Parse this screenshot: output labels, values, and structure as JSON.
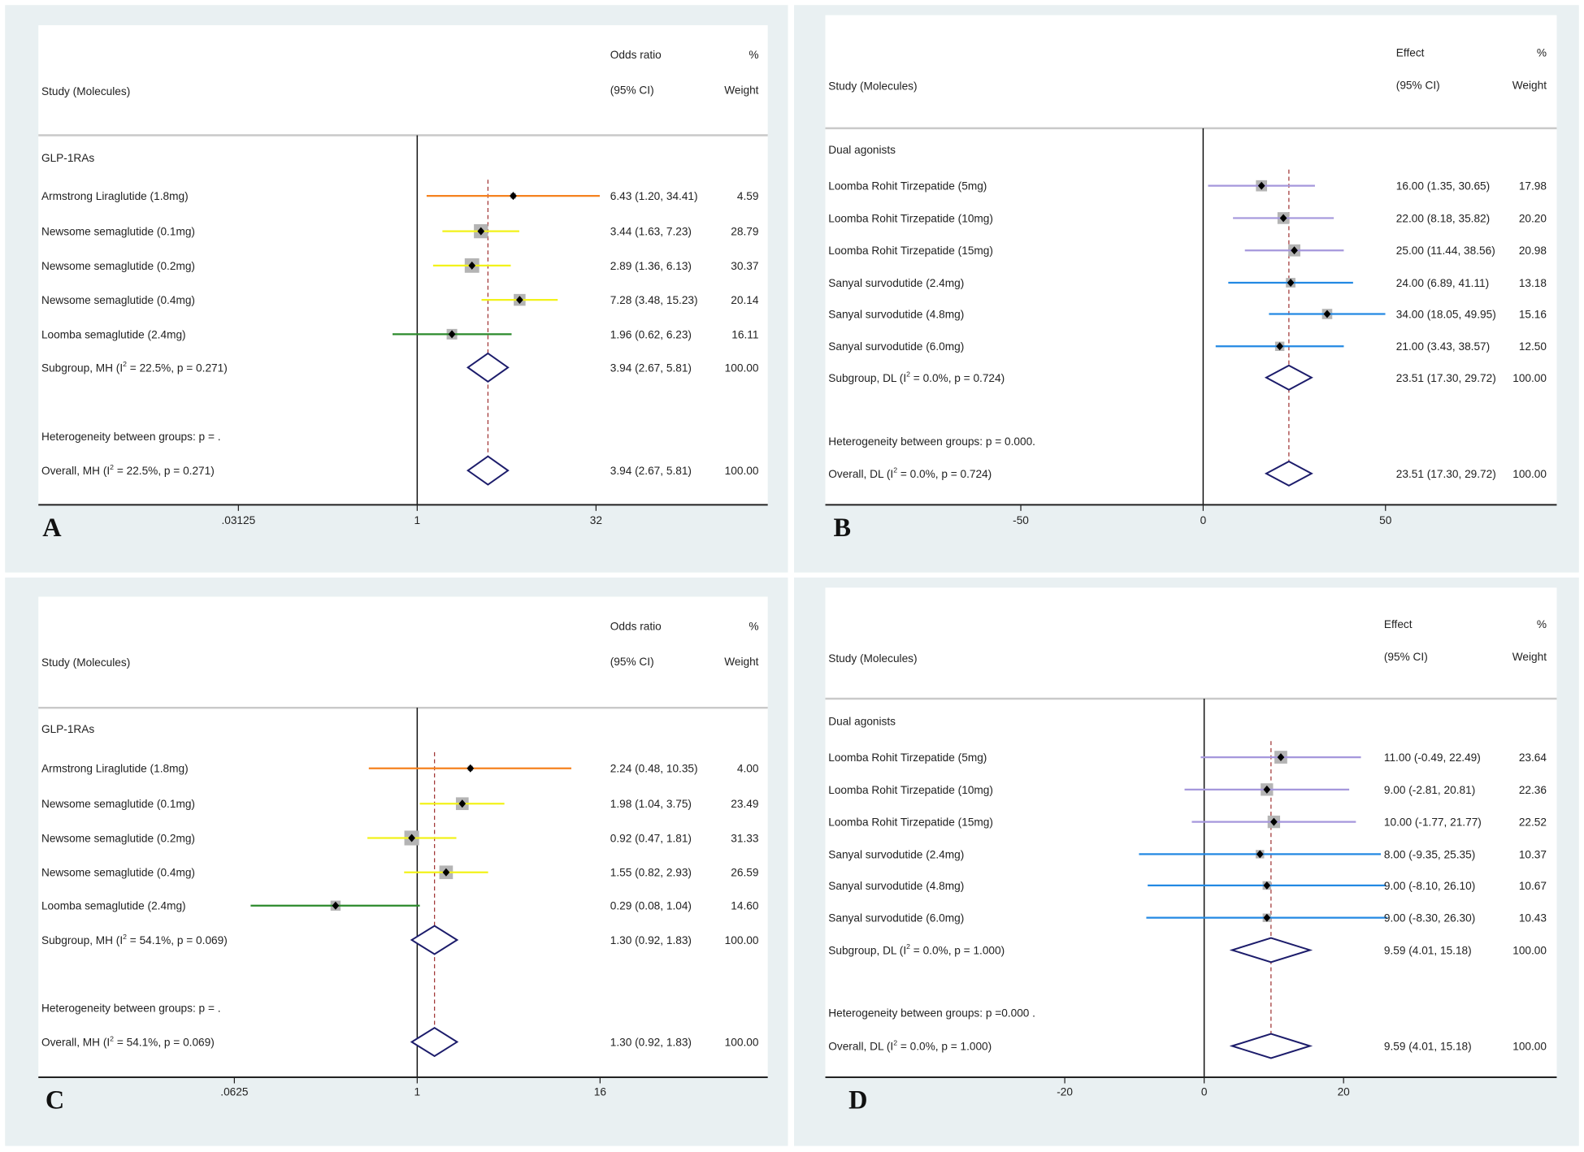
{
  "chart_data": [
    {
      "type": "forest",
      "panel_letter": "A",
      "scale": "log2",
      "header": {
        "study": "Study (Molecules)",
        "effect_line1": "Odds ratio",
        "effect_line2": "(95% CI)",
        "weight_line1": "%",
        "weight_line2": "Weight"
      },
      "group_label": "GLP-1RAs",
      "null_value": 1,
      "pooled_value": 3.94,
      "rows": [
        {
          "label": "Armstrong Liraglutide (1.8mg)",
          "est": 6.43,
          "lo": 1.2,
          "hi": 34.41,
          "ci_text": "6.43 (1.20, 34.41)",
          "weight": "4.59",
          "color": "#f5821f"
        },
        {
          "label": "Newsome semaglutide (0.1mg)",
          "est": 3.44,
          "lo": 1.63,
          "hi": 7.23,
          "ci_text": "3.44 (1.63, 7.23)",
          "weight": "28.79",
          "color": "#f2f21a"
        },
        {
          "label": "Newsome semaglutide (0.2mg)",
          "est": 2.89,
          "lo": 1.36,
          "hi": 6.13,
          "ci_text": "2.89 (1.36, 6.13)",
          "weight": "30.37",
          "color": "#f2f21a"
        },
        {
          "label": "Newsome semaglutide (0.4mg)",
          "est": 7.28,
          "lo": 3.48,
          "hi": 15.23,
          "ci_text": "7.28 (3.48, 15.23)",
          "weight": "20.14",
          "color": "#f2f21a"
        },
        {
          "label": "Loomba semaglutide (2.4mg)",
          "est": 1.96,
          "lo": 0.62,
          "hi": 6.23,
          "ci_text": "1.96 (0.62, 6.23)",
          "weight": "16.11",
          "color": "#2b8a2b"
        }
      ],
      "subgroup": {
        "pre": "Subgroup, MH (I",
        "sup": "2",
        "post": " = 22.5%, p = 0.271)",
        "est": 3.94,
        "lo": 2.67,
        "hi": 5.81,
        "ci_text": "3.94 (2.67, 5.81)",
        "weight": "100.00"
      },
      "heterogeneity": "Heterogeneity between groups: p = .",
      "overall": {
        "pre": "Overall, MH (I",
        "sup": "2",
        "post": " = 22.5%, p = 0.271)",
        "est": 3.94,
        "lo": 2.67,
        "hi": 5.81,
        "ci_text": "3.94 (2.67, 5.81)",
        "weight": "100.00"
      },
      "x_ticks": [
        {
          "value": 0.03125,
          "label": ".03125"
        },
        {
          "value": 1,
          "label": "1"
        },
        {
          "value": 32,
          "label": "32"
        }
      ]
    },
    {
      "type": "forest",
      "panel_letter": "B",
      "scale": "linear",
      "header": {
        "study": "Study (Molecules)",
        "effect_line1": "Effect",
        "effect_line2": "(95% CI)",
        "weight_line1": "%",
        "weight_line2": "Weight"
      },
      "group_label": "Dual agonists",
      "null_value": 0,
      "pooled_value": 23.51,
      "rows": [
        {
          "label": "Loomba Rohit Tirzepatide (5mg)",
          "est": 16.0,
          "lo": 1.35,
          "hi": 30.65,
          "ci_text": "16.00 (1.35, 30.65)",
          "weight": "17.98",
          "color": "#a597dc"
        },
        {
          "label": "Loomba Rohit Tirzepatide (10mg)",
          "est": 22.0,
          "lo": 8.18,
          "hi": 35.82,
          "ci_text": "22.00 (8.18, 35.82)",
          "weight": "20.20",
          "color": "#a597dc"
        },
        {
          "label": "Loomba Rohit Tirzepatide (15mg)",
          "est": 25.0,
          "lo": 11.44,
          "hi": 38.56,
          "ci_text": "25.00 (11.44, 38.56)",
          "weight": "20.98",
          "color": "#a597dc"
        },
        {
          "label": "Sanyal survodutide (2.4mg)",
          "est": 24.0,
          "lo": 6.89,
          "hi": 41.11,
          "ci_text": "24.00 (6.89, 41.11)",
          "weight": "13.18",
          "color": "#2389e3"
        },
        {
          "label": "Sanyal survodutide (4.8mg)",
          "est": 34.0,
          "lo": 18.05,
          "hi": 49.95,
          "ci_text": "34.00 (18.05, 49.95)",
          "weight": "15.16",
          "color": "#2389e3"
        },
        {
          "label": "Sanyal survodutide (6.0mg)",
          "est": 21.0,
          "lo": 3.43,
          "hi": 38.57,
          "ci_text": "21.00 (3.43, 38.57)",
          "weight": "12.50",
          "color": "#2389e3"
        }
      ],
      "subgroup": {
        "pre": "Subgroup, DL (I",
        "sup": "2",
        "post": " = 0.0%, p = 0.724)",
        "est": 23.51,
        "lo": 17.3,
        "hi": 29.72,
        "ci_text": "23.51 (17.30, 29.72)",
        "weight": "100.00"
      },
      "heterogeneity": "Heterogeneity between groups: p = 0.000.",
      "overall": {
        "pre": "Overall, DL (I",
        "sup": "2",
        "post": " = 0.0%, p = 0.724)",
        "est": 23.51,
        "lo": 17.3,
        "hi": 29.72,
        "ci_text": "23.51 (17.30, 29.72)",
        "weight": "100.00"
      },
      "x_ticks": [
        {
          "value": -50,
          "label": "-50"
        },
        {
          "value": 0,
          "label": "0"
        },
        {
          "value": 50,
          "label": "50"
        }
      ]
    },
    {
      "type": "forest",
      "panel_letter": "C",
      "scale": "log2",
      "header": {
        "study": "Study (Molecules)",
        "effect_line1": "Odds ratio",
        "effect_line2": "(95% CI)",
        "weight_line1": "%",
        "weight_line2": "Weight"
      },
      "group_label": "GLP-1RAs",
      "null_value": 1,
      "pooled_value": 1.3,
      "rows": [
        {
          "label": "Armstrong Liraglutide (1.8mg)",
          "est": 2.24,
          "lo": 0.48,
          "hi": 10.35,
          "ci_text": "2.24 (0.48, 10.35)",
          "weight": "4.00",
          "color": "#f5821f"
        },
        {
          "label": "Newsome semaglutide (0.1mg)",
          "est": 1.98,
          "lo": 1.04,
          "hi": 3.75,
          "ci_text": "1.98 (1.04, 3.75)",
          "weight": "23.49",
          "color": "#f2f21a"
        },
        {
          "label": "Newsome semaglutide (0.2mg)",
          "est": 0.92,
          "lo": 0.47,
          "hi": 1.81,
          "ci_text": "0.92 (0.47, 1.81)",
          "weight": "31.33",
          "color": "#f2f21a"
        },
        {
          "label": "Newsome semaglutide (0.4mg)",
          "est": 1.55,
          "lo": 0.82,
          "hi": 2.93,
          "ci_text": "1.55 (0.82, 2.93)",
          "weight": "26.59",
          "color": "#f2f21a"
        },
        {
          "label": "Loomba semaglutide (2.4mg)",
          "est": 0.29,
          "lo": 0.08,
          "hi": 1.04,
          "ci_text": "0.29 (0.08, 1.04)",
          "weight": "14.60",
          "color": "#2b8a2b"
        }
      ],
      "subgroup": {
        "pre": "Subgroup, MH (I",
        "sup": "2",
        "post": " = 54.1%, p = 0.069)",
        "est": 1.3,
        "lo": 0.92,
        "hi": 1.83,
        "ci_text": "1.30 (0.92, 1.83)",
        "weight": "100.00"
      },
      "heterogeneity": "Heterogeneity between groups: p = .",
      "overall": {
        "pre": "Overall, MH (I",
        "sup": "2",
        "post": " = 54.1%, p = 0.069)",
        "est": 1.3,
        "lo": 0.92,
        "hi": 1.83,
        "ci_text": "1.30 (0.92, 1.83)",
        "weight": "100.00"
      },
      "x_ticks": [
        {
          "value": 0.0625,
          "label": ".0625"
        },
        {
          "value": 1,
          "label": "1"
        },
        {
          "value": 16,
          "label": "16"
        }
      ]
    },
    {
      "type": "forest",
      "panel_letter": "D",
      "scale": "linear",
      "header": {
        "study": "Study (Molecules)",
        "effect_line1": "Effect",
        "effect_line2": "(95% CI)",
        "weight_line1": "%",
        "weight_line2": "Weight"
      },
      "group_label": "Dual agonists",
      "null_value": 0,
      "pooled_value": 9.59,
      "rows": [
        {
          "label": "Loomba Rohit Tirzepatide (5mg)",
          "est": 11.0,
          "lo": -0.49,
          "hi": 22.49,
          "ci_text": "11.00 (-0.49, 22.49)",
          "weight": "23.64",
          "color": "#a597dc"
        },
        {
          "label": "Loomba Rohit Tirzepatide (10mg)",
          "est": 9.0,
          "lo": -2.81,
          "hi": 20.81,
          "ci_text": "9.00 (-2.81, 20.81)",
          "weight": "22.36",
          "color": "#a597dc"
        },
        {
          "label": "Loomba Rohit Tirzepatide (15mg)",
          "est": 10.0,
          "lo": -1.77,
          "hi": 21.77,
          "ci_text": "10.00 (-1.77, 21.77)",
          "weight": "22.52",
          "color": "#a597dc"
        },
        {
          "label": "Sanyal survodutide (2.4mg)",
          "est": 8.0,
          "lo": -9.35,
          "hi": 25.35,
          "ci_text": "8.00 (-9.35, 25.35)",
          "weight": "10.37",
          "color": "#2389e3"
        },
        {
          "label": "Sanyal survodutide (4.8mg)",
          "est": 9.0,
          "lo": -8.1,
          "hi": 26.1,
          "ci_text": "9.00 (-8.10, 26.10)",
          "weight": "10.67",
          "color": "#2389e3"
        },
        {
          "label": "Sanyal survodutide (6.0mg)",
          "est": 9.0,
          "lo": -8.3,
          "hi": 26.3,
          "ci_text": "9.00 (-8.30, 26.30)",
          "weight": "10.43",
          "color": "#2389e3"
        }
      ],
      "subgroup": {
        "pre": "Subgroup, DL (I",
        "sup": "2",
        "post": " = 0.0%, p = 1.000)",
        "est": 9.59,
        "lo": 4.01,
        "hi": 15.18,
        "ci_text": "9.59 (4.01, 15.18)",
        "weight": "100.00"
      },
      "heterogeneity": "Heterogeneity between groups: p =0.000 .",
      "overall": {
        "pre": "Overall, DL (I",
        "sup": "2",
        "post": " = 0.0%, p = 1.000)",
        "est": 9.59,
        "lo": 4.01,
        "hi": 15.18,
        "ci_text": "9.59 (4.01, 15.18)",
        "weight": "100.00"
      },
      "x_ticks": [
        {
          "value": -20,
          "label": "-20"
        },
        {
          "value": 0,
          "label": "0"
        },
        {
          "value": 20,
          "label": "20"
        }
      ]
    }
  ],
  "colors": {
    "panel_bg": "#e9f0f2",
    "box": "#b4b4b4",
    "diamond": "#1c1c6b",
    "pooled_line": "#a03434",
    "separator": "#c9c9c9"
  }
}
